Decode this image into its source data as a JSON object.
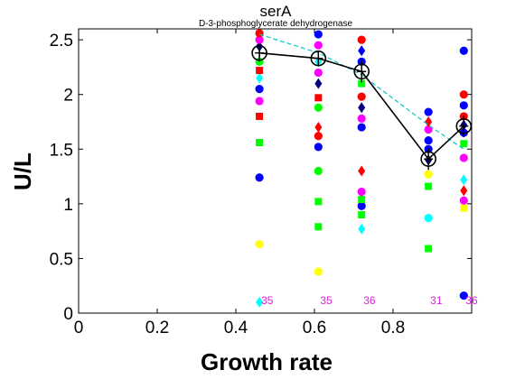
{
  "chart_data": {
    "type": "scatter",
    "title": "serA",
    "subtitle": "D-3-phosphoglycerate dehydrogenase",
    "xlabel": "Growth rate",
    "ylabel": "U/L",
    "xlim": [
      0,
      1.0
    ],
    "ylim": [
      0,
      2.6
    ],
    "xticks": [
      "0",
      "0.2",
      "0.4",
      "0.6",
      "0.8"
    ],
    "yticks": [
      "0",
      "0.5",
      "1",
      "1.5",
      "2",
      "2.5"
    ],
    "grid": false,
    "legend": "none",
    "growth_rates": [
      0.46,
      0.61,
      0.72,
      0.89,
      0.98
    ],
    "sample_counts": [
      "35",
      "35",
      "36",
      "31",
      "36"
    ],
    "mean_line": {
      "color": "#000000",
      "y": [
        2.38,
        2.33,
        2.21,
        1.41,
        1.71
      ],
      "err": [
        0.08,
        0.07,
        0.1,
        0.1,
        0.1
      ]
    },
    "fit_line": {
      "color": "#00c8c8",
      "y": [
        2.55,
        2.38,
        2.18,
        1.72,
        1.5
      ]
    },
    "points": [
      {
        "x": 0.46,
        "y": 0.63,
        "shape": "circle",
        "color": "#ffff00"
      },
      {
        "x": 0.46,
        "y": 1.24,
        "shape": "circle",
        "color": "#0000ff"
      },
      {
        "x": 0.46,
        "y": 1.56,
        "shape": "square",
        "color": "#00ff00"
      },
      {
        "x": 0.46,
        "y": 1.8,
        "shape": "square",
        "color": "#ff0000"
      },
      {
        "x": 0.46,
        "y": 1.94,
        "shape": "circle",
        "color": "#ff00ff"
      },
      {
        "x": 0.46,
        "y": 2.05,
        "shape": "circle",
        "color": "#0000ff"
      },
      {
        "x": 0.46,
        "y": 2.15,
        "shape": "diamond",
        "color": "#00ffff"
      },
      {
        "x": 0.46,
        "y": 2.22,
        "shape": "square",
        "color": "#ff0000"
      },
      {
        "x": 0.46,
        "y": 2.3,
        "shape": "circle",
        "color": "#00ff00"
      },
      {
        "x": 0.46,
        "y": 2.44,
        "shape": "diamond",
        "color": "#000080"
      },
      {
        "x": 0.46,
        "y": 2.5,
        "shape": "circle",
        "color": "#ff00ff"
      },
      {
        "x": 0.46,
        "y": 2.56,
        "shape": "circle",
        "color": "#ff0000"
      },
      {
        "x": 0.46,
        "y": 0.1,
        "shape": "diamond",
        "color": "#00ffff"
      },
      {
        "x": 0.61,
        "y": 0.38,
        "shape": "circle",
        "color": "#ffff00"
      },
      {
        "x": 0.61,
        "y": 0.79,
        "shape": "square",
        "color": "#00ff00"
      },
      {
        "x": 0.61,
        "y": 1.02,
        "shape": "square",
        "color": "#00ff00"
      },
      {
        "x": 0.61,
        "y": 1.3,
        "shape": "circle",
        "color": "#00ff00"
      },
      {
        "x": 0.61,
        "y": 1.52,
        "shape": "circle",
        "color": "#0000ff"
      },
      {
        "x": 0.61,
        "y": 1.62,
        "shape": "circle",
        "color": "#ff0000"
      },
      {
        "x": 0.61,
        "y": 1.7,
        "shape": "diamond",
        "color": "#ff0000"
      },
      {
        "x": 0.61,
        "y": 1.88,
        "shape": "circle",
        "color": "#00ff00"
      },
      {
        "x": 0.61,
        "y": 1.97,
        "shape": "square",
        "color": "#ff0000"
      },
      {
        "x": 0.61,
        "y": 2.1,
        "shape": "diamond",
        "color": "#000080"
      },
      {
        "x": 0.61,
        "y": 2.2,
        "shape": "circle",
        "color": "#ff00ff"
      },
      {
        "x": 0.61,
        "y": 2.3,
        "shape": "diamond",
        "color": "#00ffff"
      },
      {
        "x": 0.61,
        "y": 2.45,
        "shape": "circle",
        "color": "#ff00ff"
      },
      {
        "x": 0.61,
        "y": 2.55,
        "shape": "circle",
        "color": "#0000ff"
      },
      {
        "x": 0.72,
        "y": 0.77,
        "shape": "diamond",
        "color": "#00ffff"
      },
      {
        "x": 0.72,
        "y": 0.9,
        "shape": "square",
        "color": "#00ff00"
      },
      {
        "x": 0.72,
        "y": 0.98,
        "shape": "circle",
        "color": "#0000ff"
      },
      {
        "x": 0.72,
        "y": 1.04,
        "shape": "square",
        "color": "#00ff00"
      },
      {
        "x": 0.72,
        "y": 1.11,
        "shape": "circle",
        "color": "#ff00ff"
      },
      {
        "x": 0.72,
        "y": 1.3,
        "shape": "diamond",
        "color": "#ff0000"
      },
      {
        "x": 0.72,
        "y": 1.7,
        "shape": "circle",
        "color": "#0000ff"
      },
      {
        "x": 0.72,
        "y": 1.78,
        "shape": "circle",
        "color": "#ff00ff"
      },
      {
        "x": 0.72,
        "y": 1.88,
        "shape": "diamond",
        "color": "#000080"
      },
      {
        "x": 0.72,
        "y": 1.98,
        "shape": "circle",
        "color": "#ff0000"
      },
      {
        "x": 0.72,
        "y": 2.1,
        "shape": "square",
        "color": "#00ff00"
      },
      {
        "x": 0.72,
        "y": 2.3,
        "shape": "circle",
        "color": "#0000ff"
      },
      {
        "x": 0.72,
        "y": 2.4,
        "shape": "diamond",
        "color": "#0000ff"
      },
      {
        "x": 0.72,
        "y": 2.5,
        "shape": "circle",
        "color": "#ff0000"
      },
      {
        "x": 0.89,
        "y": 0.59,
        "shape": "square",
        "color": "#00ff00"
      },
      {
        "x": 0.89,
        "y": 0.87,
        "shape": "circle",
        "color": "#00ffff"
      },
      {
        "x": 0.89,
        "y": 1.16,
        "shape": "square",
        "color": "#00ff00"
      },
      {
        "x": 0.89,
        "y": 1.27,
        "shape": "circle",
        "color": "#ffff00"
      },
      {
        "x": 0.89,
        "y": 1.4,
        "shape": "diamond",
        "color": "#000080"
      },
      {
        "x": 0.89,
        "y": 1.5,
        "shape": "circle",
        "color": "#0000ff"
      },
      {
        "x": 0.89,
        "y": 1.58,
        "shape": "circle",
        "color": "#0000ff"
      },
      {
        "x": 0.89,
        "y": 1.68,
        "shape": "circle",
        "color": "#ff00ff"
      },
      {
        "x": 0.89,
        "y": 1.75,
        "shape": "diamond",
        "color": "#ff0000"
      },
      {
        "x": 0.89,
        "y": 1.84,
        "shape": "circle",
        "color": "#0000ff"
      },
      {
        "x": 0.98,
        "y": 0.16,
        "shape": "circle",
        "color": "#0000ff"
      },
      {
        "x": 0.98,
        "y": 0.96,
        "shape": "square",
        "color": "#ffff00"
      },
      {
        "x": 0.98,
        "y": 1.03,
        "shape": "circle",
        "color": "#ff00ff"
      },
      {
        "x": 0.98,
        "y": 1.12,
        "shape": "diamond",
        "color": "#ff0000"
      },
      {
        "x": 0.98,
        "y": 1.22,
        "shape": "diamond",
        "color": "#00ffff"
      },
      {
        "x": 0.98,
        "y": 1.42,
        "shape": "circle",
        "color": "#ff00ff"
      },
      {
        "x": 0.98,
        "y": 1.55,
        "shape": "square",
        "color": "#00ff00"
      },
      {
        "x": 0.98,
        "y": 1.65,
        "shape": "circle",
        "color": "#0000ff"
      },
      {
        "x": 0.98,
        "y": 1.72,
        "shape": "diamond",
        "color": "#000080"
      },
      {
        "x": 0.98,
        "y": 1.8,
        "shape": "circle",
        "color": "#ff0000"
      },
      {
        "x": 0.98,
        "y": 1.9,
        "shape": "circle",
        "color": "#0000ff"
      },
      {
        "x": 0.98,
        "y": 2.0,
        "shape": "circle",
        "color": "#ff0000"
      },
      {
        "x": 0.98,
        "y": 2.4,
        "shape": "circle",
        "color": "#0000ff"
      }
    ]
  }
}
